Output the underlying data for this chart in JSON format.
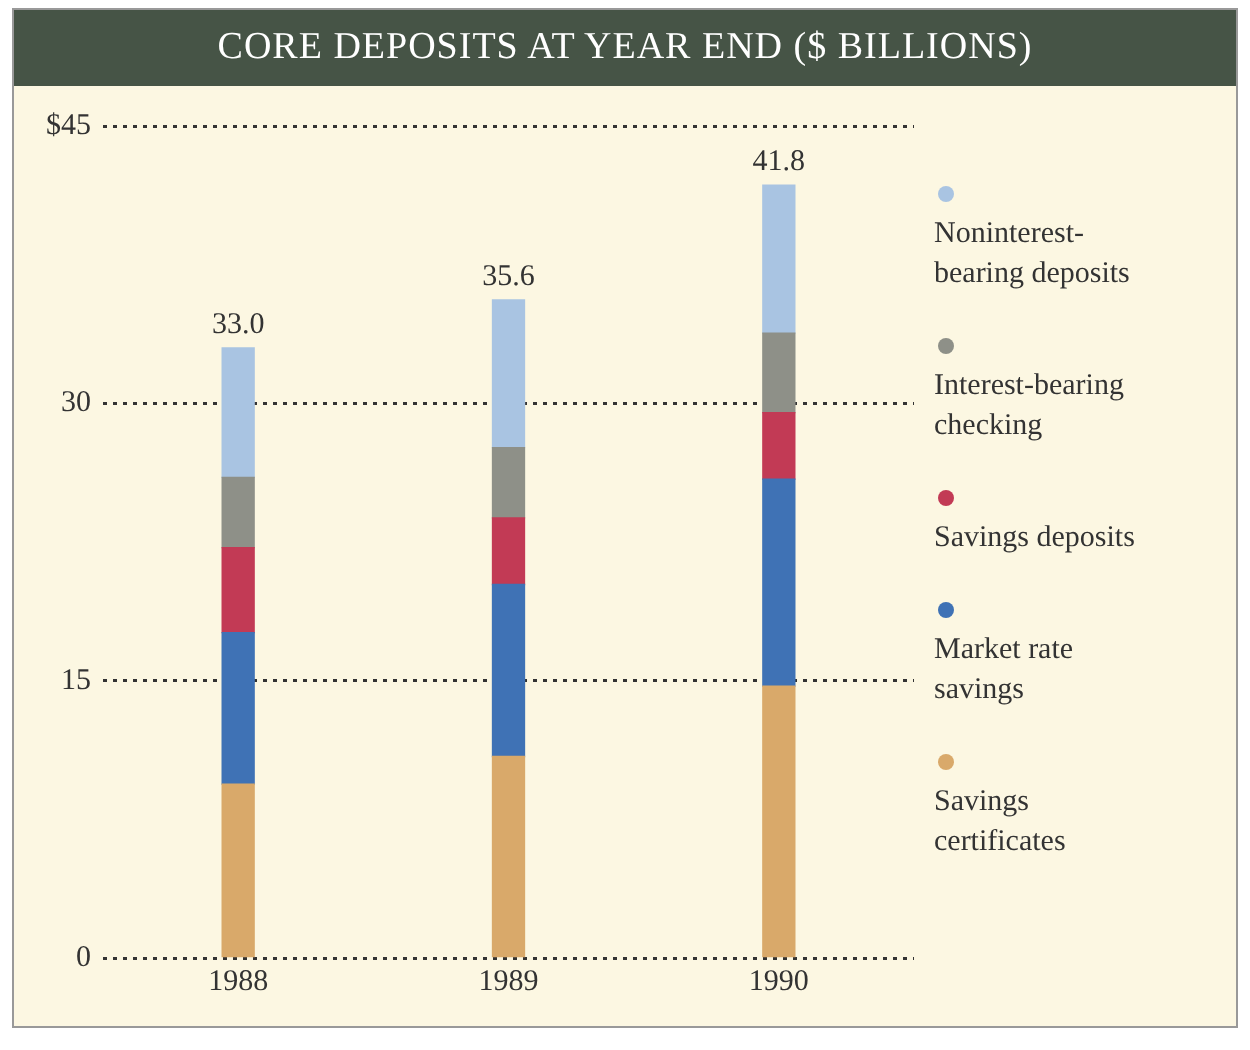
{
  "chart_data": {
    "type": "bar",
    "title": "CORE DEPOSITS AT YEAR END ($ BILLIONS)",
    "categories": [
      "1988",
      "1989",
      "1990"
    ],
    "stacked": true,
    "series": [
      {
        "name": "Savings certificates",
        "color": "#d9a96a",
        "values": [
          9.4,
          10.9,
          14.7
        ]
      },
      {
        "name": "Market rate savings",
        "color": "#3f72b5",
        "values": [
          8.2,
          9.3,
          11.2
        ]
      },
      {
        "name": "Savings deposits",
        "color": "#c23a55",
        "values": [
          4.6,
          3.6,
          3.6
        ]
      },
      {
        "name": "Interest-bearing checking",
        "color": "#8e9088",
        "values": [
          3.8,
          3.8,
          4.3
        ]
      },
      {
        "name": "Noninterest-bearing deposits",
        "color": "#a9c4e2",
        "values": [
          7.0,
          8.0,
          8.0
        ]
      }
    ],
    "ylim": [
      0,
      45
    ],
    "yticks": [
      0,
      15,
      30,
      {
        "value": 45,
        "label": "$45"
      }
    ],
    "grid": "y",
    "legend": "right",
    "totals": [
      "33.0",
      "35.6",
      "41.8"
    ]
  }
}
